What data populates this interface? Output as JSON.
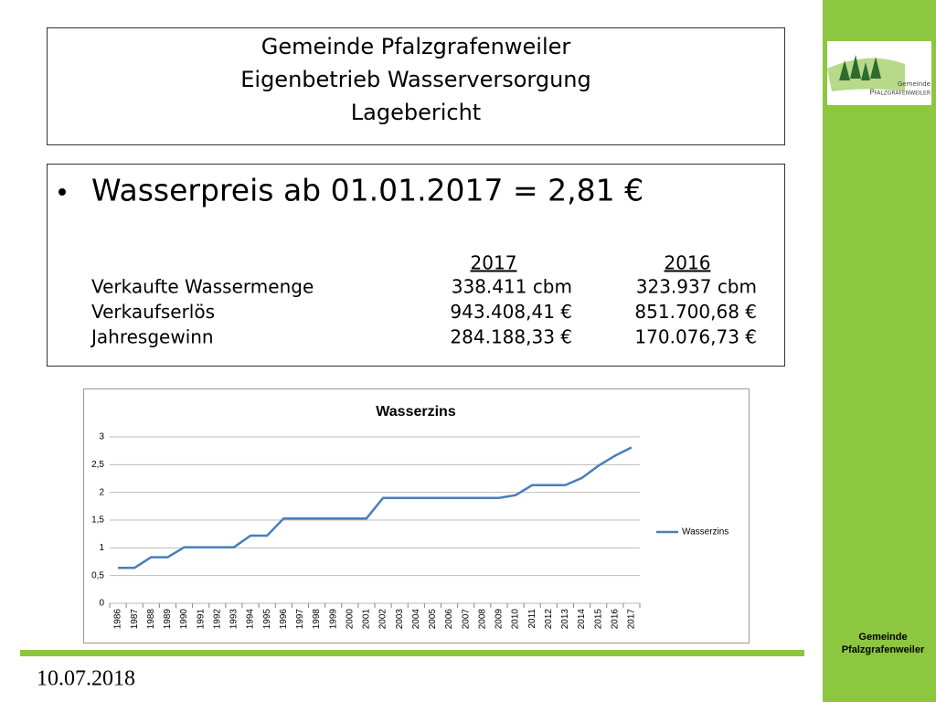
{
  "header": {
    "title_lines": [
      "Gemeinde Pfalzgrafenweiler",
      "Eigenbetrieb Wasserversorgung",
      "Lagebericht"
    ]
  },
  "content": {
    "bullet": "Wasserpreis ab 01.01.2017 = 2,81 €",
    "table": {
      "header": [
        "2017",
        "2016"
      ],
      "rows": [
        [
          "Verkaufte Wassermenge",
          "338.411 cbm",
          "323.937 cbm"
        ],
        [
          "Verkaufserlös",
          "943.408,41 €",
          "851.700,68 €"
        ],
        [
          "Jahresgewinn",
          "284.188,33 €",
          "170.076,73 €"
        ]
      ]
    }
  },
  "chart_data": {
    "type": "line",
    "title": "Wasserzins",
    "categories": [
      "1986",
      "1987",
      "1988",
      "1989",
      "1990",
      "1991",
      "1992",
      "1993",
      "1994",
      "1995",
      "1996",
      "1997",
      "1998",
      "1999",
      "2000",
      "2001",
      "2002",
      "2003",
      "2004",
      "2005",
      "2006",
      "2007",
      "2008",
      "2009",
      "2010",
      "2011",
      "2012",
      "2013",
      "2014",
      "2015",
      "2016",
      "2017"
    ],
    "series": [
      {
        "name": "Wasserzins",
        "color": "#4a7ebb",
        "values": [
          0.64,
          0.64,
          0.83,
          0.83,
          1.01,
          1.01,
          1.01,
          1.01,
          1.22,
          1.22,
          1.53,
          1.53,
          1.53,
          1.53,
          1.53,
          1.53,
          1.9,
          1.9,
          1.9,
          1.9,
          1.9,
          1.9,
          1.9,
          1.9,
          1.95,
          2.13,
          2.13,
          2.13,
          2.26,
          2.48,
          2.66,
          2.81
        ]
      }
    ],
    "ylim": [
      0,
      3
    ],
    "yticks": [
      0,
      {
        "value": 0.5,
        "label": "0,5"
      },
      1,
      {
        "value": 1.5,
        "label": "1,5"
      },
      2,
      {
        "value": 2.5,
        "label": "2,5"
      },
      3
    ],
    "grid": true,
    "legend": "right"
  },
  "footer": {
    "date": "10.07.2018"
  },
  "sidebar": {
    "logo_text": [
      "Gemeinde",
      "Pfalzgrafenweiler"
    ],
    "footer_lines": [
      "Gemeinde",
      "Pfalzgrafenweiler"
    ]
  }
}
